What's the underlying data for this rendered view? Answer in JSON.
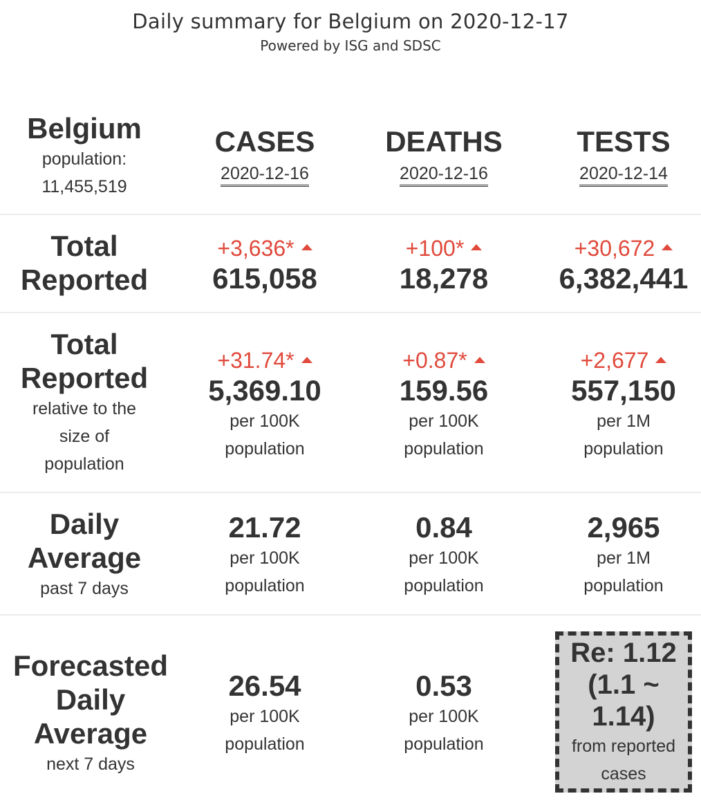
{
  "header": {
    "title": "Daily summary for Belgium on 2020-12-17",
    "subtitle": "Powered by ISG and SDSC"
  },
  "country": {
    "name": "Belgium",
    "population_label": "population:",
    "population": "11,455,519"
  },
  "columns": [
    {
      "label": "CASES",
      "date": "2020-12-16"
    },
    {
      "label": "DEATHS",
      "date": "2020-12-16"
    },
    {
      "label": "TESTS",
      "date": "2020-12-14"
    }
  ],
  "rows": {
    "total_reported": {
      "label_line1": "Total",
      "label_line2": "Reported",
      "cells": [
        {
          "delta": "+3,636*",
          "value": "615,058"
        },
        {
          "delta": "+100*",
          "value": "18,278"
        },
        {
          "delta": "+30,672",
          "value": "6,382,441"
        }
      ]
    },
    "relative": {
      "label_line1": "Total",
      "label_line2": "Reported",
      "sub1": "relative to the",
      "sub2": "size of",
      "sub3": "population",
      "cells": [
        {
          "delta": "+31.74*",
          "value": "5,369.10",
          "unit1": "per 100K",
          "unit2": "population"
        },
        {
          "delta": "+0.87*",
          "value": "159.56",
          "unit1": "per 100K",
          "unit2": "population"
        },
        {
          "delta": "+2,677",
          "value": "557,150",
          "unit1": "per 1M",
          "unit2": "population"
        }
      ]
    },
    "daily_average": {
      "label_line1": "Daily",
      "label_line2": "Average",
      "sub1": "past 7 days",
      "cells": [
        {
          "value": "21.72",
          "unit1": "per 100K",
          "unit2": "population"
        },
        {
          "value": "0.84",
          "unit1": "per 100K",
          "unit2": "population"
        },
        {
          "value": "2,965",
          "unit1": "per 1M",
          "unit2": "population"
        }
      ]
    },
    "forecast": {
      "label_line1": "Forecasted",
      "label_line2": "Daily",
      "label_line3": "Average",
      "sub1": "next 7 days",
      "cells": [
        {
          "value": "26.54",
          "unit1": "per 100K",
          "unit2": "population"
        },
        {
          "value": "0.53",
          "unit1": "per 100K",
          "unit2": "population"
        }
      ],
      "re": {
        "line1": "Re: 1.12",
        "line2": "(1.1 ~",
        "line3": "1.14)",
        "line4": "from reported",
        "line5": "cases"
      }
    }
  },
  "icons": {
    "increase": "up-triangle-icon"
  },
  "colors": {
    "increase": "#e0493b",
    "text": "#333333",
    "re_bg": "#d3d3d3"
  }
}
